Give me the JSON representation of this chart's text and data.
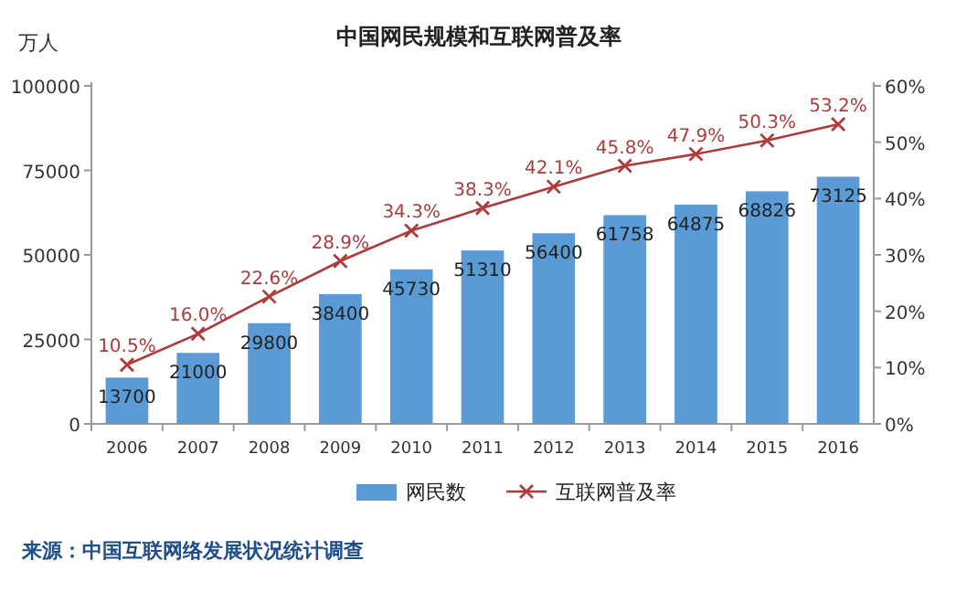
{
  "chart_data": {
    "type": "bar",
    "title": "中国网民规模和互联网普及率",
    "ylabel": "万人",
    "categories": [
      "2006",
      "2007",
      "2008",
      "2009",
      "2010",
      "2011",
      "2012",
      "2013",
      "2014",
      "2015",
      "2016"
    ],
    "series": [
      {
        "name": "网民数",
        "color": "#5b9bd5",
        "values": [
          13700,
          21000,
          29800,
          38400,
          45730,
          51310,
          56400,
          61758,
          64875,
          68826,
          73125
        ],
        "value_labels": [
          "13700",
          "21000",
          "29800",
          "38400",
          "45730",
          "51310",
          "56400",
          "61758",
          "64875",
          "68826",
          "73125"
        ]
      },
      {
        "name": "互联网普及率",
        "type": "line",
        "axis": "y2",
        "color": "#b03a3a",
        "marker": "cross",
        "values": [
          10.5,
          16.0,
          22.6,
          28.9,
          34.3,
          38.3,
          42.1,
          45.8,
          47.9,
          50.3,
          53.2
        ],
        "value_labels": [
          "10.5%",
          "16.0%",
          "22.6%",
          "28.9%",
          "34.3%",
          "38.3%",
          "42.1%",
          "45.8%",
          "47.9%",
          "50.3%",
          "53.2%"
        ]
      }
    ],
    "ylim": [
      0,
      100000
    ],
    "yticks": [
      0,
      25000,
      50000,
      75000,
      100000
    ],
    "y2lim": [
      0,
      60
    ],
    "y2ticks": [
      {
        "value": 0,
        "label": "0%"
      },
      {
        "value": 10,
        "label": "10%"
      },
      {
        "value": 20,
        "label": "20%"
      },
      {
        "value": 30,
        "label": "30%"
      },
      {
        "value": 40,
        "label": "40%"
      },
      {
        "value": 50,
        "label": "50%"
      },
      {
        "value": 60,
        "label": "60%"
      }
    ],
    "legend": "bottom",
    "annotations": [
      "来源：中国互联网络发展状况统计调查"
    ]
  }
}
